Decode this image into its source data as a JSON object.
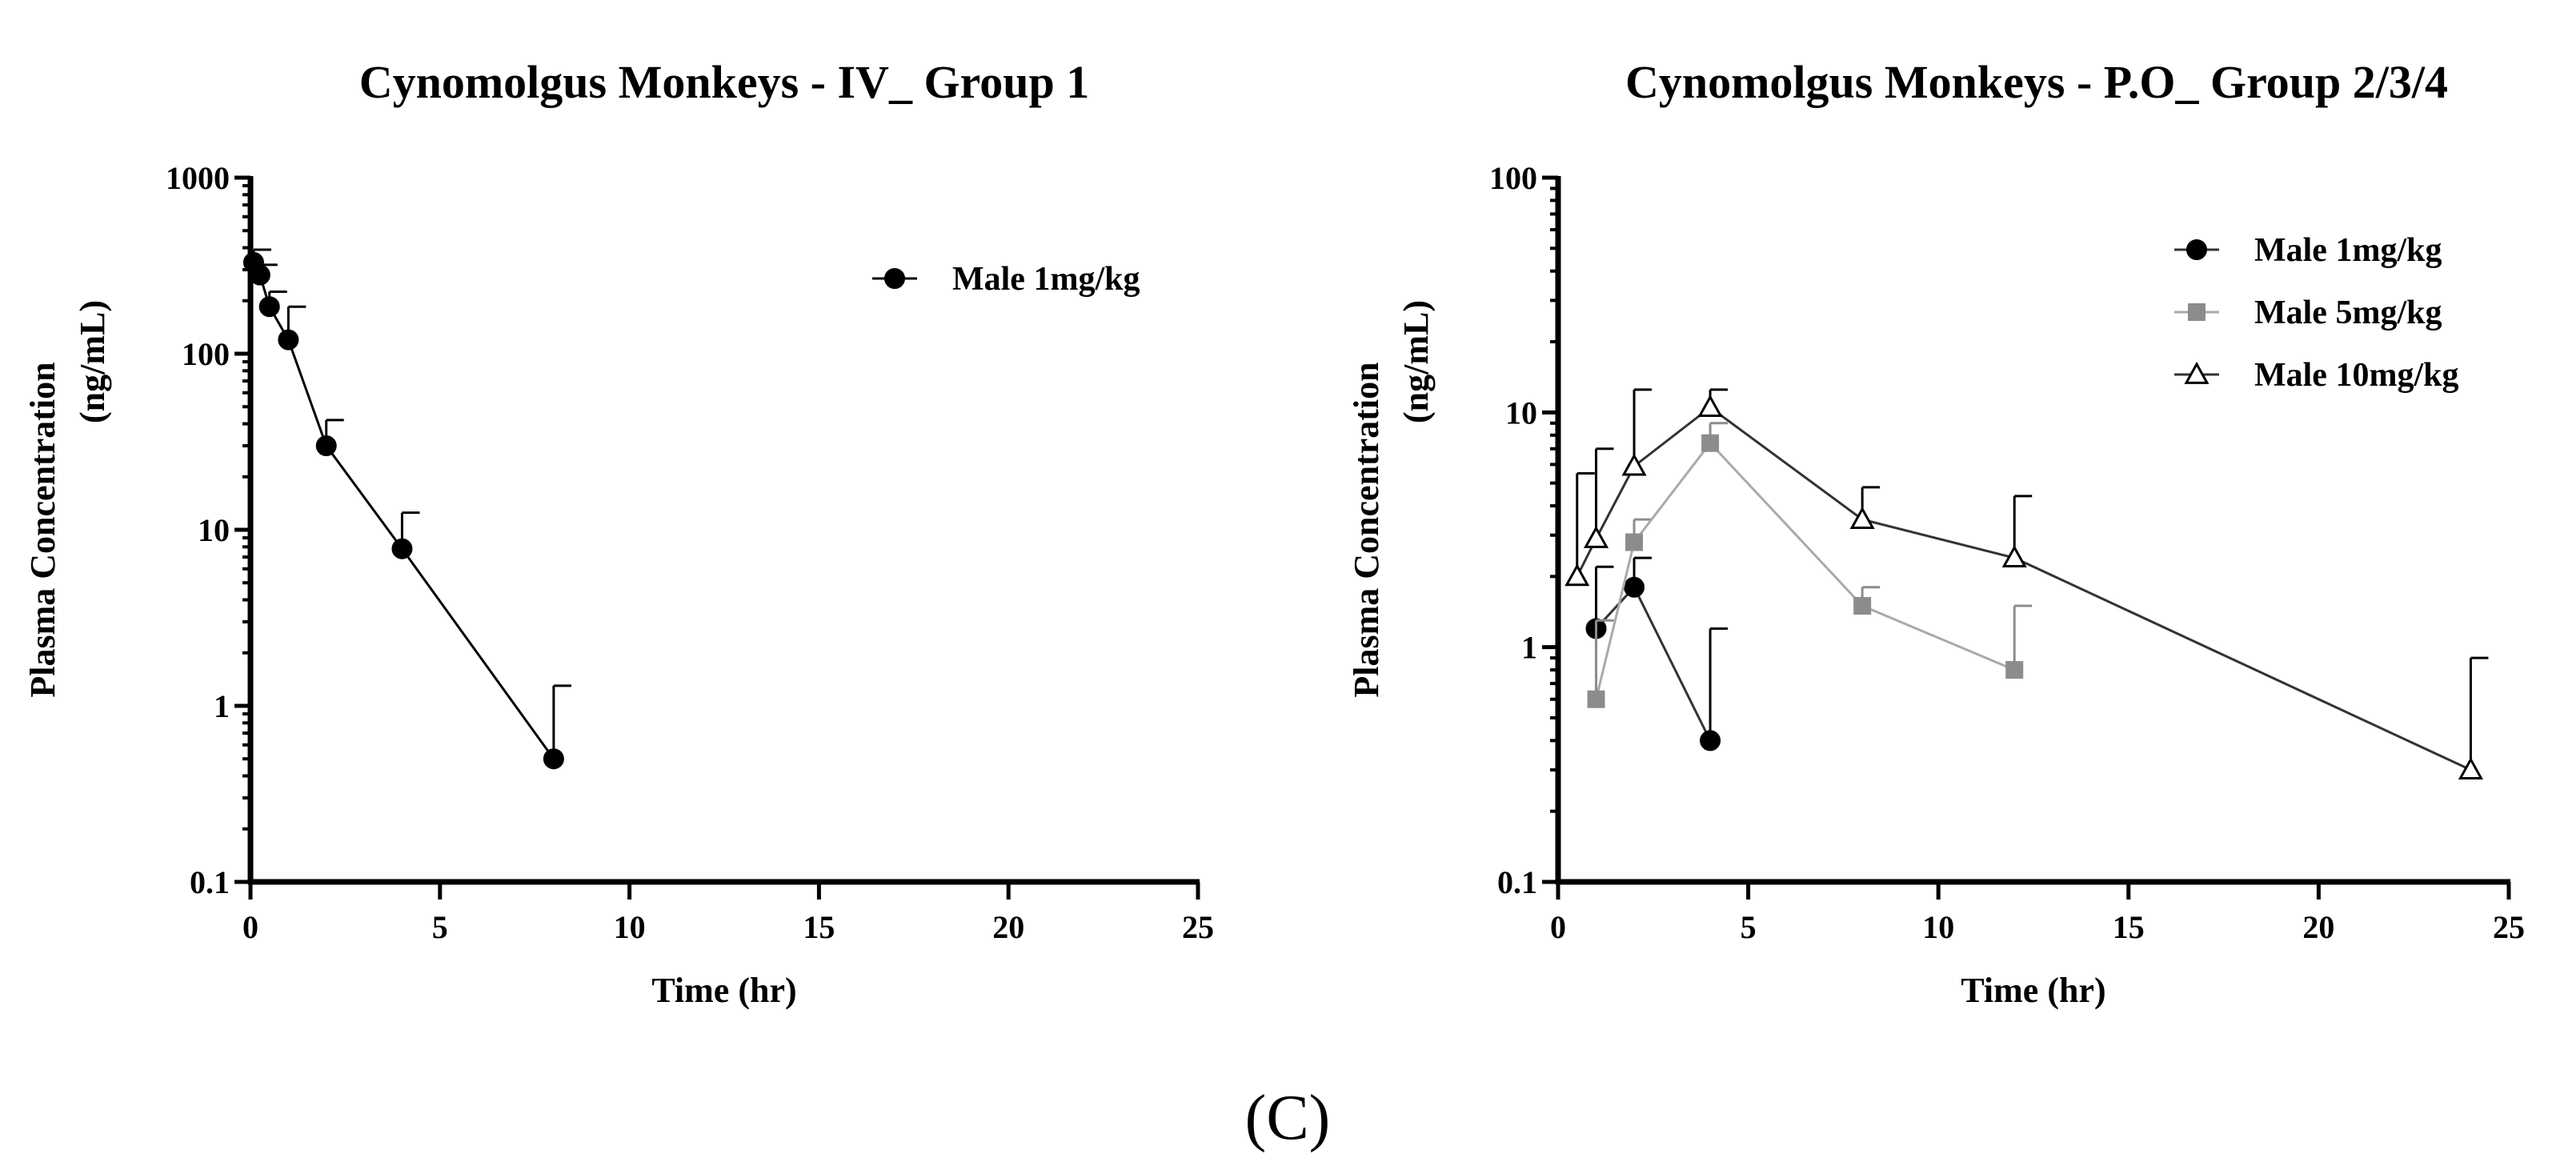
{
  "figure_label": "(C)",
  "chart_data": [
    {
      "type": "line",
      "title": "Cynomolgus  Monkeys -  IV_   Group 1",
      "xlabel": "Time  (hr)",
      "ylabel_line1": "Plasma  Concentration",
      "ylabel_line2": "(ng/mL)",
      "yscale": "log",
      "xlim": [
        0,
        25
      ],
      "ylim": [
        0.1,
        1000
      ],
      "xticks": [
        "0",
        "5",
        "10",
        "15",
        "20",
        "25"
      ],
      "xtick_values": [
        0,
        5,
        10,
        15,
        20,
        25
      ],
      "yticks": [
        "0.1",
        "1",
        "10",
        "100",
        "1000"
      ],
      "ytick_values": [
        0.1,
        1,
        10,
        100,
        1000
      ],
      "grid": false,
      "legend_position": "top-right",
      "series": [
        {
          "name": "Male 1mg/kg",
          "marker": "circle",
          "color": "#000000",
          "line_color": "#000000",
          "x": [
            0.083,
            0.25,
            0.5,
            1,
            2,
            4,
            8
          ],
          "y": [
            330,
            280,
            185,
            120,
            30,
            7.8,
            0.5
          ],
          "err_upper": [
            390,
            320,
            225,
            185,
            42,
            12.5,
            1.3
          ]
        }
      ]
    },
    {
      "type": "line",
      "title": "Cynomolgus Monkeys -  P.O_   Group 2/3/4",
      "xlabel": "Time  (hr)",
      "ylabel_line1": "Plasma  Concentration",
      "ylabel_line2": "(ng/mL)",
      "yscale": "log",
      "xlim": [
        0,
        25
      ],
      "ylim": [
        0.1,
        100
      ],
      "xticks": [
        "0",
        "5",
        "10",
        "15",
        "20",
        "25"
      ],
      "xtick_values": [
        0,
        5,
        10,
        15,
        20,
        25
      ],
      "yticks": [
        "0.1",
        "1",
        "10",
        "100"
      ],
      "ytick_values": [
        0.1,
        1,
        10,
        100
      ],
      "grid": false,
      "legend_position": "top-right",
      "series": [
        {
          "name": "Male 1mg/kg",
          "marker": "circle",
          "color": "#000000",
          "line_color": "#333333",
          "x": [
            1,
            2,
            4
          ],
          "y": [
            1.2,
            1.8,
            0.4
          ],
          "err_upper": [
            2.2,
            2.4,
            1.2
          ]
        },
        {
          "name": "Male 5mg/kg",
          "marker": "square",
          "color": "#8c8c8c",
          "line_color": "#aaaaaa",
          "x": [
            1,
            2,
            4,
            8,
            12
          ],
          "y": [
            0.6,
            2.8,
            7.4,
            1.5,
            0.8
          ],
          "err_upper": [
            1.3,
            3.5,
            9.0,
            1.8,
            1.5
          ]
        },
        {
          "name": "Male 10mg/kg",
          "marker": "triangle-open",
          "color": "#000000",
          "line_color": "#333333",
          "x": [
            0.5,
            1,
            2,
            4,
            8,
            12,
            24
          ],
          "y": [
            2.0,
            2.9,
            5.9,
            10.5,
            3.5,
            2.4,
            0.3
          ],
          "err_upper": [
            5.5,
            7.0,
            12.5,
            12.5,
            4.8,
            4.4,
            0.9
          ]
        }
      ]
    }
  ]
}
